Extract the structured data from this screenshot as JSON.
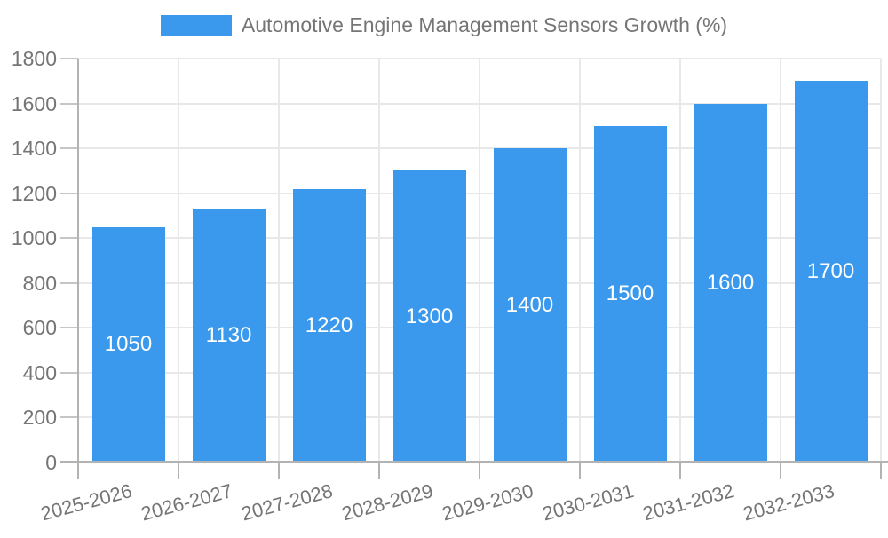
{
  "chart_data": {
    "type": "bar",
    "series_name": "Automotive Engine Management Sensors Growth (%)",
    "categories": [
      "2025-2026",
      "2026-2027",
      "2027-2028",
      "2028-2029",
      "2029-2030",
      "2030-2031",
      "2031-2032",
      "2032-2033"
    ],
    "values": [
      1050,
      1130,
      1220,
      1300,
      1400,
      1500,
      1600,
      1700
    ],
    "ylim": [
      0,
      1800
    ],
    "yticks": [
      0,
      200,
      400,
      600,
      800,
      1000,
      1200,
      1400,
      1600,
      1800
    ],
    "grid": true,
    "legend_position": "top-center",
    "bar_color": "#3A99EC",
    "value_label_color": "#FFFFFF",
    "axis_color": "#B3B3B3",
    "grid_color": "#E8E8E8",
    "tick_color": "#C6C6C6",
    "label_color": "#757575"
  }
}
